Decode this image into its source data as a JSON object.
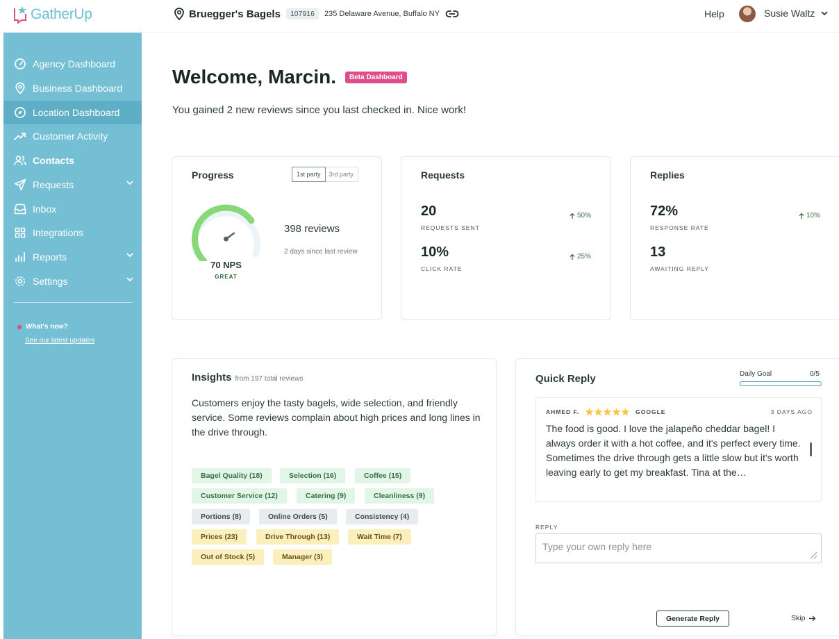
{
  "brand": {
    "name": "GatherUp",
    "accent": "#75bfd5",
    "pink": "#df4e8a"
  },
  "location": {
    "name": "Bruegger's Bagels",
    "id": "107916",
    "address": "235 Delaware Avenue, Buffalo NY"
  },
  "header": {
    "help": "Help",
    "user": "Susie Waltz"
  },
  "sidebar": {
    "items": [
      {
        "label": "Agency Dashboard",
        "icon": "gauge-icon"
      },
      {
        "label": "Business Dashboard",
        "icon": "map-pin-icon"
      },
      {
        "label": "Location Dashboard",
        "icon": "compass-icon",
        "active": true
      },
      {
        "label": "Customer Activity",
        "icon": "trend-icon"
      },
      {
        "label": "Contacts",
        "icon": "users-icon"
      },
      {
        "label": "Requests",
        "icon": "send-icon",
        "expandable": true
      },
      {
        "label": "Inbox",
        "icon": "inbox-icon"
      },
      {
        "label": "Integrations",
        "icon": "grid-icon"
      },
      {
        "label": "Reports",
        "icon": "bar-chart-icon",
        "expandable": true
      },
      {
        "label": "Settings",
        "icon": "gear-icon",
        "expandable": true
      }
    ],
    "whats_new": "What's new?",
    "updates_link": "See our latest updates"
  },
  "welcome": {
    "title": "Welcome, Marcin.",
    "badge": "Beta Dashboard",
    "subtitle": "You gained 2 new reviews since you last checked in. Nice work!"
  },
  "progress": {
    "title": "Progress",
    "toggle": [
      "1st party",
      "3rd party"
    ],
    "nps_value": 70,
    "nps_max": 100,
    "nps": "70 NPS",
    "rating": "GREAT",
    "reviews": "398 reviews",
    "since": "2 days since last review"
  },
  "requests": {
    "title": "Requests",
    "sent": "20",
    "sent_label": "REQUESTS SENT",
    "sent_change": "50%",
    "click": "10%",
    "click_label": "CLICK RATE",
    "click_change": "25%"
  },
  "replies": {
    "title": "Replies",
    "rate": "72%",
    "rate_label": "RESPONSE RATE",
    "rate_change": "10%",
    "awaiting": "13",
    "awaiting_label": "AWAITING REPLY"
  },
  "insights": {
    "title": "Insights",
    "subtitle": "from 197 total reviews",
    "summary": "Customers enjoy the tasty bagels, wide selection, and friendly service. Some reviews complain about high prices and long lines in the drive through.",
    "tags": [
      {
        "label": "Bagel Quality (18)",
        "tone": "green"
      },
      {
        "label": "Selection (16)",
        "tone": "green"
      },
      {
        "label": "Coffee (15)",
        "tone": "green"
      },
      {
        "label": "Customer Service (12)",
        "tone": "green"
      },
      {
        "label": "Catering (9)",
        "tone": "green"
      },
      {
        "label": "Cleanliness (9)",
        "tone": "green"
      },
      {
        "label": "Portions (8)",
        "tone": "gray"
      },
      {
        "label": "Online Orders (5)",
        "tone": "gray"
      },
      {
        "label": "Consistency (4)",
        "tone": "gray"
      },
      {
        "label": "Prices (23)",
        "tone": "yellow"
      },
      {
        "label": "Drive Through (13)",
        "tone": "yellow"
      },
      {
        "label": "Wait Time (7)",
        "tone": "yellow"
      },
      {
        "label": "Out of Stock (5)",
        "tone": "yellow"
      },
      {
        "label": "Manager (3)",
        "tone": "yellow"
      }
    ]
  },
  "quick_reply": {
    "title": "Quick Reply",
    "goal_label": "Daily Goal",
    "goal_value": "0/5",
    "goal_fraction": 0,
    "review": {
      "author": "AHMED F.",
      "stars": 5,
      "source": "GOOGLE",
      "date": "3 DAYS AGO",
      "text": "The food is good. I love the jalapeño cheddar bagel! I always order it with a hot coffee, and it's perfect every time. Sometimes the drive through gets a little slow but it's worth leaving early to get my breakfast. Tina at the…"
    },
    "reply_label": "REPLY",
    "reply_placeholder": "Type your own reply here",
    "generate": "Generate Reply",
    "skip": "Skip"
  }
}
